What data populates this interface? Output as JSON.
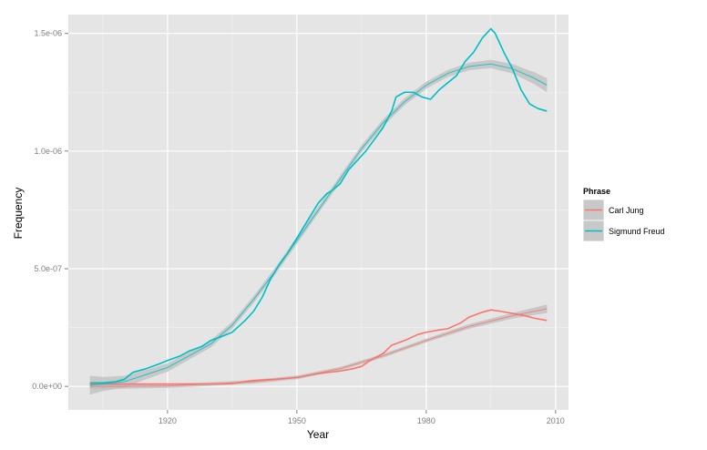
{
  "chart_data": {
    "type": "line",
    "xlabel": "Year",
    "ylabel": "Frequency",
    "xlim": [
      1897,
      2013
    ],
    "ylim": [
      -1e-07,
      1.58e-06
    ],
    "x_ticks": [
      1920,
      1950,
      1980,
      2010
    ],
    "x_tick_labels": [
      "1920",
      "1950",
      "1980",
      "2010"
    ],
    "y_ticks": [
      0,
      5e-07,
      1e-06,
      1.5e-06
    ],
    "y_tick_labels": [
      "0.0e+00",
      "5.0e-07",
      "1.0e-06",
      "1.5e-06"
    ],
    "grid": true,
    "legend_title": "Phrase",
    "legend_position": "right",
    "smoothing": "loess trend with shaded confidence band",
    "series": [
      {
        "name": "Carl Jung",
        "color": "#f8766d",
        "x": [
          1902,
          1905,
          1910,
          1915,
          1920,
          1925,
          1930,
          1935,
          1940,
          1945,
          1950,
          1955,
          1960,
          1963,
          1965,
          1967,
          1970,
          1972,
          1975,
          1978,
          1980,
          1983,
          1985,
          1988,
          1990,
          1993,
          1995,
          1997,
          2000,
          2003,
          2005,
          2008
        ],
        "y": [
          1e-08,
          1e-08,
          1e-08,
          1e-08,
          1e-08,
          1e-08,
          1e-08,
          1.2e-08,
          2.5e-08,
          3e-08,
          3.8e-08,
          5.5e-08,
          6.5e-08,
          7.5e-08,
          8.5e-08,
          1.1e-07,
          1.4e-07,
          1.75e-07,
          1.95e-07,
          2.2e-07,
          2.3e-07,
          2.4e-07,
          2.45e-07,
          2.7e-07,
          2.95e-07,
          3.15e-07,
          3.25e-07,
          3.2e-07,
          3.1e-07,
          3e-07,
          2.9e-07,
          2.8e-07
        ],
        "trend": {
          "x": [
            1902,
            1910,
            1920,
            1930,
            1940,
            1950,
            1960,
            1970,
            1980,
            1990,
            2000,
            2008
          ],
          "y": [
            0,
            0,
            2e-09,
            1e-08,
            2e-08,
            3.8e-08,
            7.5e-08,
            1.3e-07,
            1.95e-07,
            2.55e-07,
            3e-07,
            3.3e-07
          ],
          "band": [
            1.2e-08,
            1e-08,
            8e-09,
            8e-09,
            8e-09,
            8e-09,
            8e-09,
            8e-09,
            8e-09,
            1e-08,
            1.2e-08,
            1.8e-08
          ]
        }
      },
      {
        "name": "Sigmund Freud",
        "color": "#00bfc4",
        "x": [
          1902,
          1905,
          1908,
          1910,
          1912,
          1915,
          1918,
          1920,
          1923,
          1925,
          1928,
          1930,
          1933,
          1935,
          1938,
          1940,
          1942,
          1944,
          1946,
          1948,
          1950,
          1952,
          1954,
          1955,
          1957,
          1958,
          1960,
          1962,
          1964,
          1966,
          1968,
          1970,
          1972,
          1973,
          1975,
          1977,
          1979,
          1981,
          1983,
          1985,
          1987,
          1989,
          1991,
          1993,
          1994,
          1995,
          1996,
          1997,
          1998,
          2000,
          2002,
          2004,
          2006,
          2008
        ],
        "y": [
          1.5e-08,
          1.5e-08,
          2e-08,
          3e-08,
          6e-08,
          7.5e-08,
          9.5e-08,
          1.1e-07,
          1.3e-07,
          1.5e-07,
          1.7e-07,
          1.95e-07,
          2.15e-07,
          2.3e-07,
          2.8e-07,
          3.2e-07,
          3.8e-07,
          4.6e-07,
          5.2e-07,
          5.7e-07,
          6.3e-07,
          6.9e-07,
          7.5e-07,
          7.8e-07,
          8.2e-07,
          8.3e-07,
          8.6e-07,
          9.2e-07,
          9.6e-07,
          1e-06,
          1.05e-06,
          1.1e-06,
          1.17e-06,
          1.23e-06,
          1.25e-06,
          1.25e-06,
          1.23e-06,
          1.22e-06,
          1.26e-06,
          1.29e-06,
          1.32e-06,
          1.38e-06,
          1.42e-06,
          1.48e-06,
          1.5e-06,
          1.52e-06,
          1.5e-06,
          1.46e-06,
          1.42e-06,
          1.35e-06,
          1.26e-06,
          1.2e-06,
          1.18e-06,
          1.17e-06
        ],
        "trend": {
          "x": [
            1902,
            1905,
            1910,
            1915,
            1920,
            1925,
            1930,
            1935,
            1940,
            1945,
            1950,
            1955,
            1960,
            1965,
            1970,
            1975,
            1980,
            1985,
            1990,
            1995,
            2000,
            2005,
            2008
          ],
          "y": [
            5e-09,
            1e-08,
            2e-08,
            5e-08,
            8e-08,
            1.3e-07,
            1.8e-07,
            2.6e-07,
            3.7e-07,
            4.9e-07,
            6.2e-07,
            7.5e-07,
            8.8e-07,
            1.01e-06,
            1.12e-06,
            1.21e-06,
            1.28e-06,
            1.33e-06,
            1.36e-06,
            1.37e-06,
            1.35e-06,
            1.31e-06,
            1.28e-06
          ],
          "band": [
            4e-08,
            3e-08,
            2.5e-08,
            2e-08,
            1.8e-08,
            1.6e-08,
            1.5e-08,
            1.5e-08,
            1.5e-08,
            1.5e-08,
            1.5e-08,
            1.5e-08,
            1.5e-08,
            1.5e-08,
            1.5e-08,
            1.5e-08,
            1.5e-08,
            1.5e-08,
            1.6e-08,
            1.8e-08,
            2e-08,
            2.5e-08,
            3e-08
          ]
        }
      }
    ]
  }
}
